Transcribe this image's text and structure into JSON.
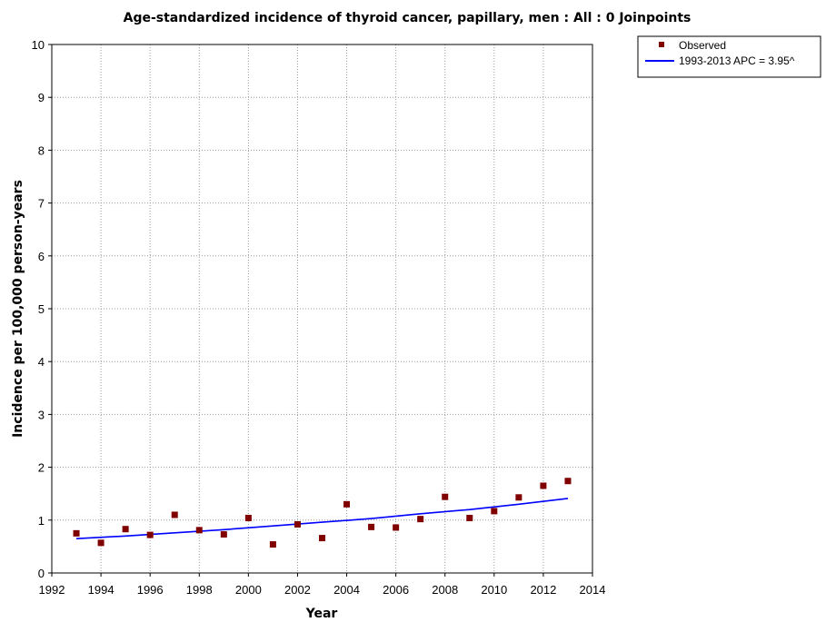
{
  "chart_data": {
    "type": "scatter",
    "title": "Age-standardized incidence of thyroid cancer, papillary, men : All : 0 Joinpoints",
    "xlabel": "Year",
    "ylabel": "Incidence per 100,000 person-years",
    "xlim": [
      1992,
      2014
    ],
    "ylim": [
      0,
      10
    ],
    "x_ticks": [
      "1992",
      "1994",
      "1996",
      "1998",
      "2000",
      "2002",
      "2004",
      "2006",
      "2008",
      "2010",
      "2012",
      "2014"
    ],
    "y_ticks": [
      "0",
      "1",
      "2",
      "3",
      "4",
      "5",
      "6",
      "7",
      "8",
      "9",
      "10"
    ],
    "grid": true,
    "legend_position": "top-right",
    "series": [
      {
        "name": "Observed",
        "kind": "points",
        "color": "#800000",
        "marker": "square",
        "x": [
          1993,
          1994,
          1995,
          1996,
          1997,
          1998,
          1999,
          2000,
          2001,
          2002,
          2003,
          2004,
          2005,
          2006,
          2007,
          2008,
          2009,
          2010,
          2011,
          2012,
          2013
        ],
        "y": [
          0.75,
          0.57,
          0.83,
          0.72,
          1.1,
          0.81,
          0.73,
          1.04,
          0.54,
          0.92,
          0.66,
          1.3,
          0.87,
          0.86,
          1.02,
          1.44,
          1.04,
          1.17,
          1.43,
          1.65,
          1.74
        ]
      },
      {
        "name": "1993-2013 APC  = 3.95^",
        "kind": "line",
        "color": "#0000ff",
        "x": [
          1993,
          1995,
          1997,
          1999,
          2001,
          2003,
          2005,
          2007,
          2009,
          2011,
          2013
        ],
        "y": [
          0.65,
          0.7,
          0.76,
          0.82,
          0.89,
          0.96,
          1.03,
          1.12,
          1.2,
          1.3,
          1.41
        ]
      }
    ]
  }
}
